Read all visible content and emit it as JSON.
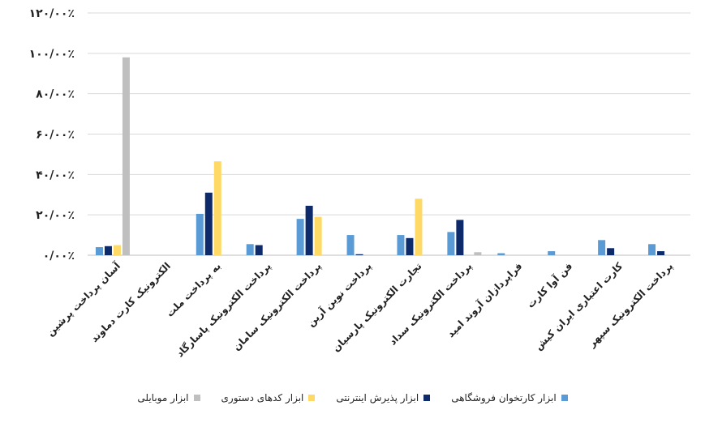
{
  "chart_data": {
    "type": "bar",
    "title": "",
    "xlabel": "",
    "ylabel": "",
    "ylim": [
      0,
      120
    ],
    "grid": true,
    "legend_position": "bottom",
    "y_tick_labels": [
      "۰/۰۰٪",
      "۲۰/۰۰٪",
      "۴۰/۰۰٪",
      "۶۰/۰۰٪",
      "۸۰/۰۰٪",
      "۱۰۰/۰۰٪",
      "۱۲۰/۰۰٪"
    ],
    "categories": [
      "آسان پرداخت پرشین",
      "الکترونیک کارت دماوند",
      "به پرداخت ملت",
      "پرداخت الکترونیک پاسارگاد",
      "پرداخت الکترونیک سامان",
      "پرداخت نوین آرین",
      "تجارت الکترونیک پارسیان",
      "پرداخت الکترونیک سداد",
      "فراپردازان آروند امید",
      "فن آوا کارت",
      "کارت اعتباری ایران کیش",
      "پرداخت الکترونیک سپهر"
    ],
    "series": [
      {
        "name": "ابزار کارتخوان فروشگاهی",
        "color": "#5b9bd5",
        "values": [
          4,
          0,
          20.5,
          5.5,
          18,
          10,
          10,
          11.5,
          1,
          2,
          7.5,
          5.5
        ]
      },
      {
        "name": "ابزار پذیرش اینترنتی",
        "color": "#0d2a6b",
        "values": [
          4.5,
          0,
          31,
          5,
          24.5,
          0.5,
          8.5,
          17.5,
          0,
          0,
          3.5,
          2
        ]
      },
      {
        "name": "ابزار کدهای دستوری",
        "color": "#ffd966",
        "values": [
          5,
          0,
          46.5,
          0,
          19,
          0,
          28,
          0,
          0,
          0,
          0,
          0
        ]
      },
      {
        "name": "ابزار موبایلی",
        "color": "#bfbfbf",
        "values": [
          98,
          0,
          0,
          0,
          0,
          0,
          0,
          1.5,
          0,
          0,
          0,
          0
        ]
      }
    ]
  }
}
